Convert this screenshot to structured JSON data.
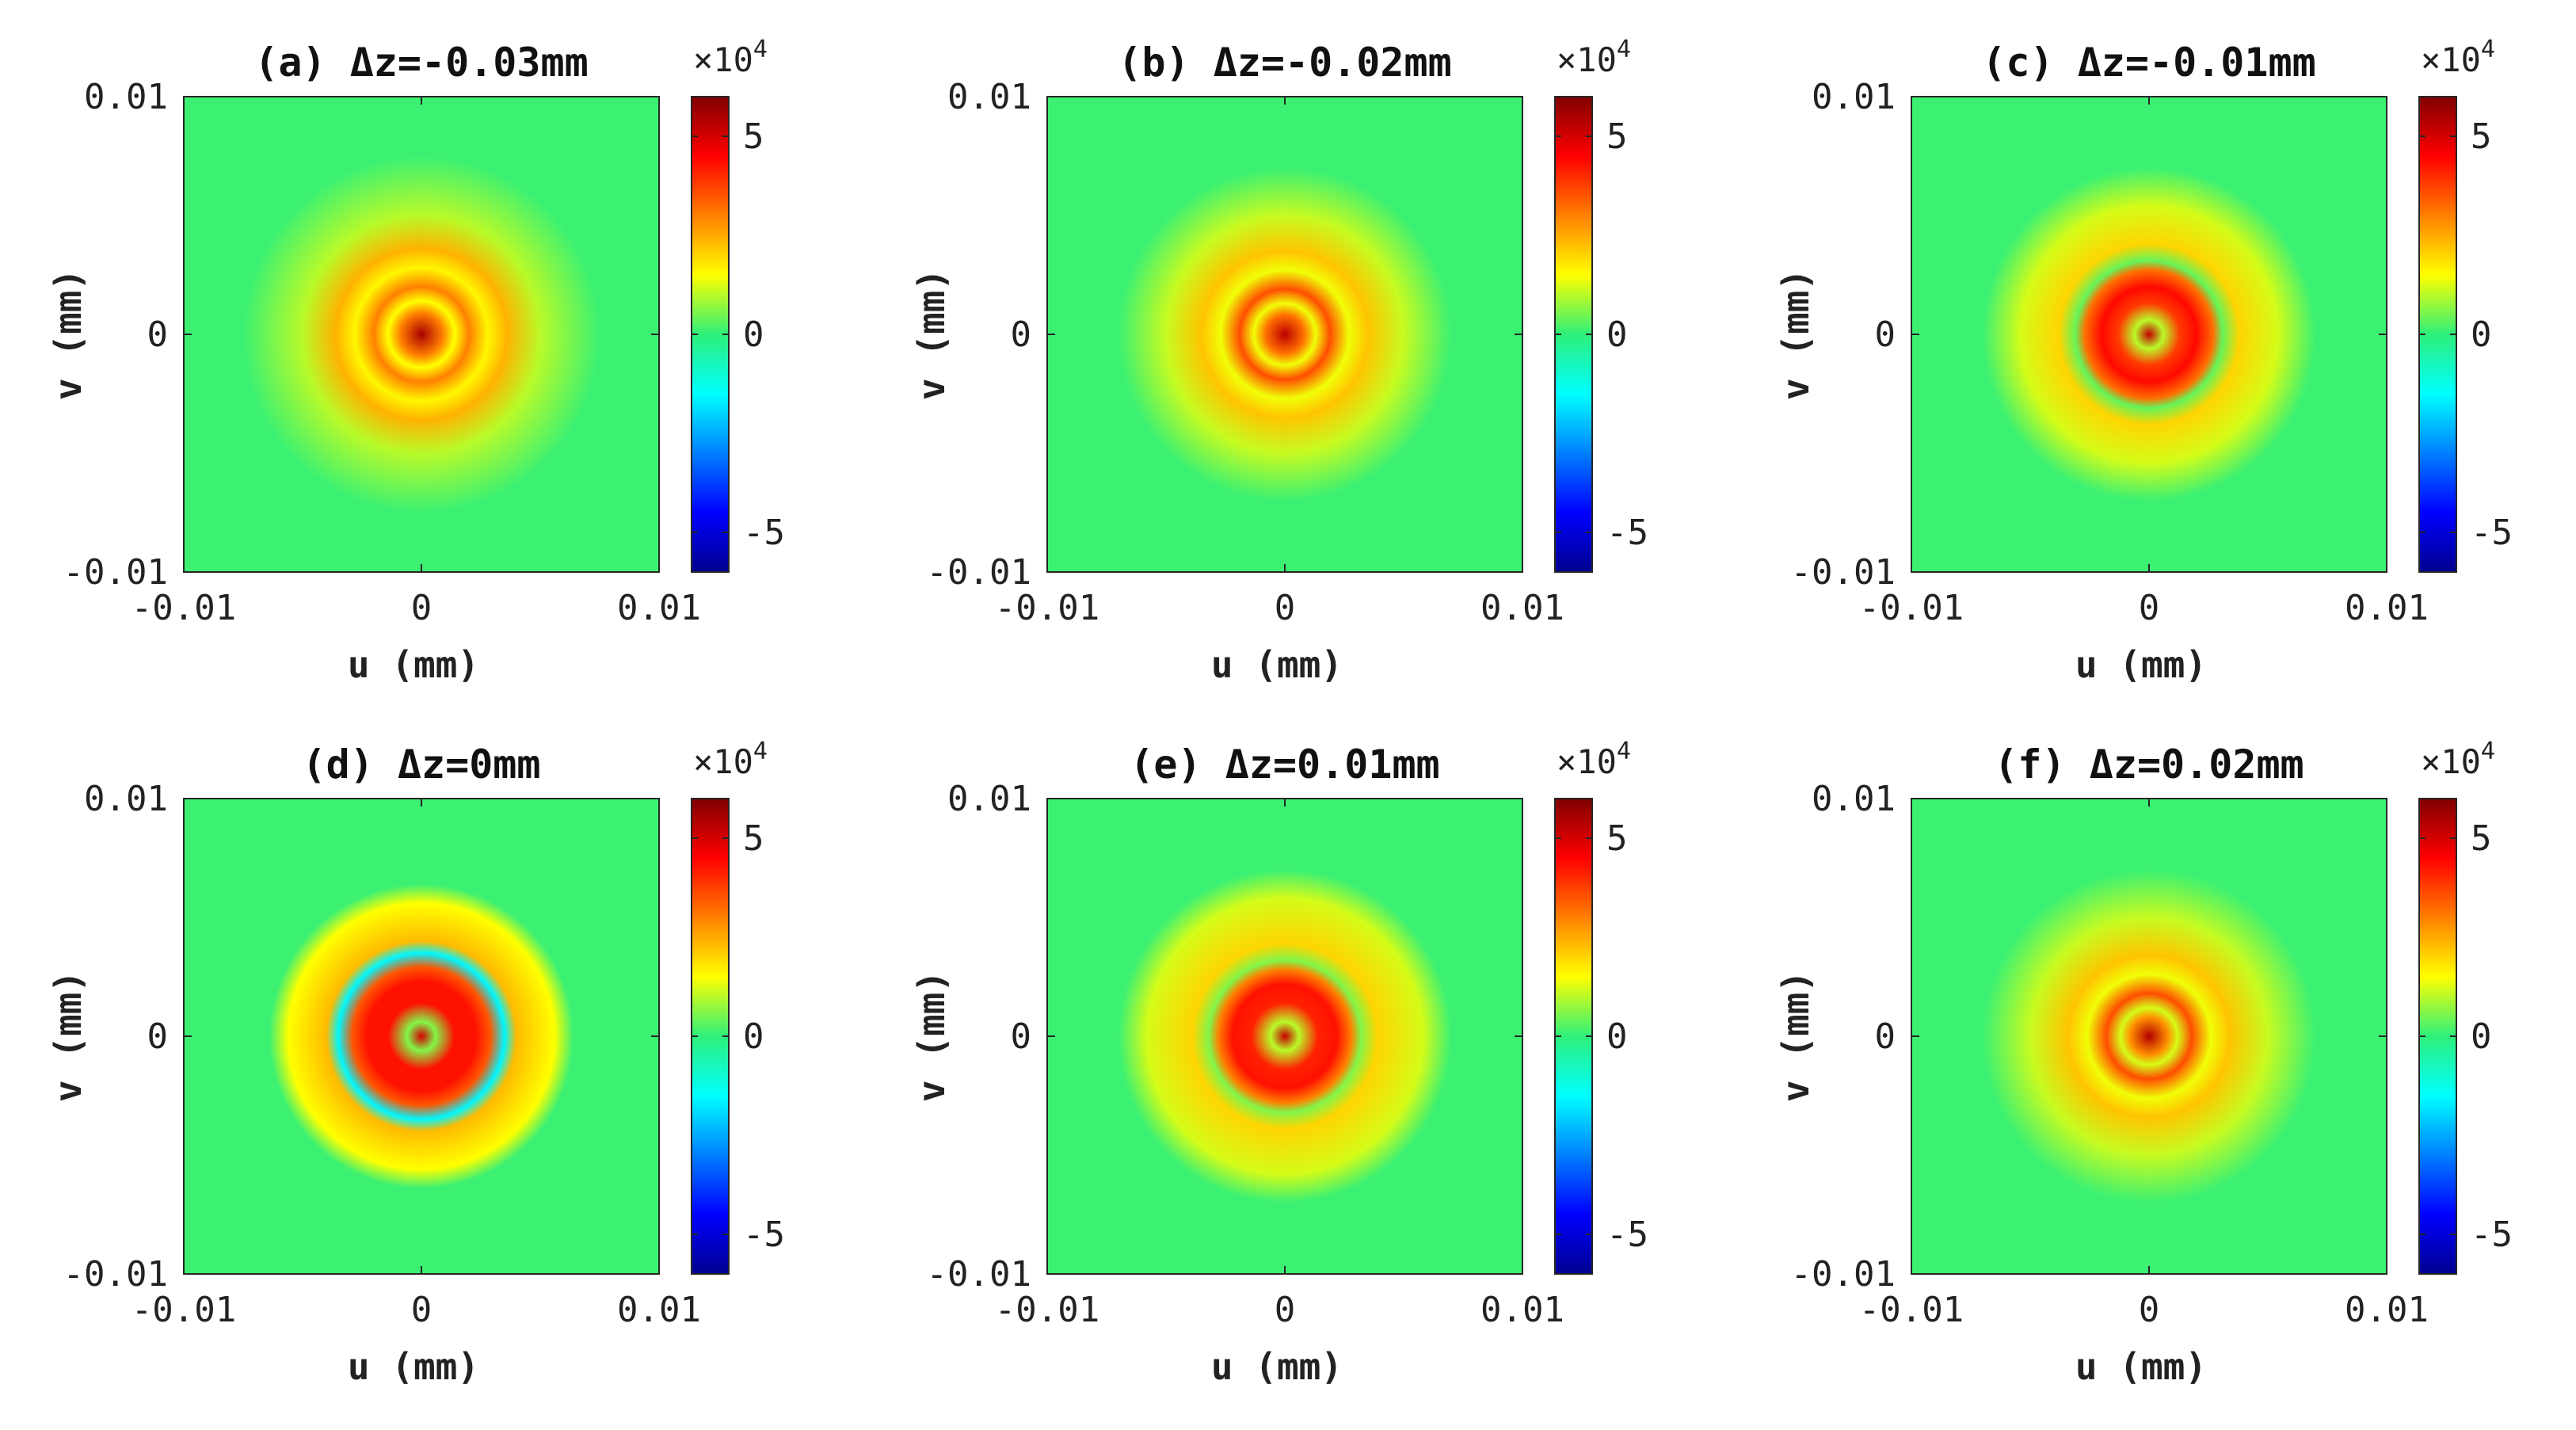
{
  "chart_data": {
    "type": "heatmap",
    "colormap": "jet",
    "colorbar": {
      "range": [
        -6,
        6
      ],
      "ticks": [
        5,
        0,
        -5
      ],
      "tick_labels": [
        "5",
        "0",
        "-5"
      ],
      "multiplier_base": "×10",
      "multiplier_exp": "4"
    },
    "xlabel": "u (mm)",
    "ylabel": "v (mm)",
    "xlim": [
      -0.01,
      0.01
    ],
    "ylim": [
      -0.01,
      0.01
    ],
    "x_tick_labels": [
      "-0.01",
      "0",
      "0.01"
    ],
    "y_tick_labels": [
      "0.01",
      "0",
      "-0.01"
    ],
    "panels": [
      {
        "label": "(a)",
        "title_rest": "Δz=-0.03mm",
        "rings": [
          [
            0,
            5.5
          ],
          [
            0.0009,
            3.0
          ],
          [
            0.0014,
            1.5
          ],
          [
            0.002,
            3.0
          ],
          [
            0.0028,
            1.6
          ],
          [
            0.0036,
            2.4
          ],
          [
            0.005,
            1.0
          ],
          [
            0.0075,
            0.1
          ]
        ]
      },
      {
        "label": "(b)",
        "title_rest": "Δz=-0.02mm",
        "rings": [
          [
            0,
            5.3
          ],
          [
            0.0008,
            3.2
          ],
          [
            0.0013,
            1.4
          ],
          [
            0.0019,
            3.6
          ],
          [
            0.0027,
            1.4
          ],
          [
            0.0035,
            2.2
          ],
          [
            0.005,
            1.1
          ],
          [
            0.007,
            0.1
          ]
        ]
      },
      {
        "label": "(c)",
        "title_rest": "Δz=-0.01mm",
        "rings": [
          [
            0,
            5.2
          ],
          [
            0.0006,
            1.0
          ],
          [
            0.0013,
            3.8
          ],
          [
            0.002,
            4.4
          ],
          [
            0.0027,
            3.2
          ],
          [
            0.0031,
            0.4
          ],
          [
            0.0038,
            2.0
          ],
          [
            0.0054,
            1.2
          ],
          [
            0.007,
            0.1
          ]
        ]
      },
      {
        "label": "(d)",
        "title_rest": "Δz=0mm",
        "rings": [
          [
            0,
            5.0
          ],
          [
            0.0006,
            0.6
          ],
          [
            0.0014,
            4.3
          ],
          [
            0.0023,
            4.3
          ],
          [
            0.0029,
            3.5
          ],
          [
            0.0035,
            -1.6
          ],
          [
            0.004,
            2.3
          ],
          [
            0.0056,
            1.5
          ],
          [
            0.0064,
            0.1
          ]
        ]
      },
      {
        "label": "(e)",
        "title_rest": "Δz=0.01mm",
        "rings": [
          [
            0,
            5.2
          ],
          [
            0.0006,
            1.0
          ],
          [
            0.0014,
            4.1
          ],
          [
            0.0022,
            4.3
          ],
          [
            0.0028,
            3.0
          ],
          [
            0.0032,
            0.6
          ],
          [
            0.0039,
            2.0
          ],
          [
            0.0058,
            1.2
          ],
          [
            0.007,
            0.1
          ]
        ]
      },
      {
        "label": "(f)",
        "title_rest": "Δz=0.02mm",
        "rings": [
          [
            0,
            5.4
          ],
          [
            0.0008,
            2.8
          ],
          [
            0.0012,
            1.2
          ],
          [
            0.0018,
            3.6
          ],
          [
            0.0026,
            1.4
          ],
          [
            0.0034,
            2.2
          ],
          [
            0.005,
            1.1
          ],
          [
            0.007,
            0.1
          ]
        ]
      }
    ]
  }
}
